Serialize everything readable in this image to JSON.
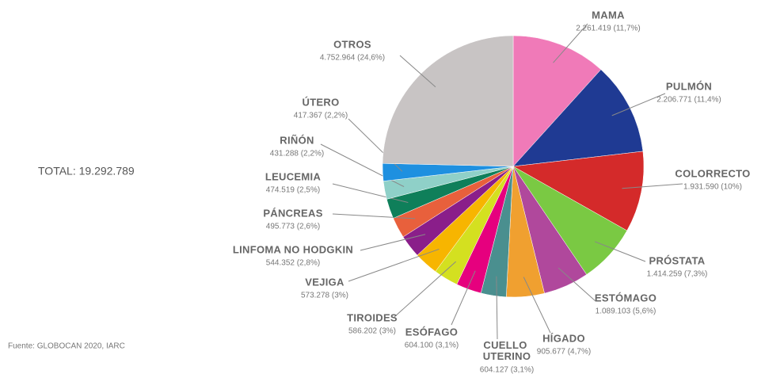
{
  "chart_data": {
    "type": "pie",
    "total_label": "TOTAL: 19.292.789",
    "source": "Fuente: GLOBOCAN 2020, IARC",
    "categories": [
      "MAMA",
      "PULMÓN",
      "COLORRECTO",
      "PRÓSTATA",
      "ESTÓMAGO",
      "HÍGADO",
      "CUELLO UTERINO",
      "ESÓFAGO",
      "TIROIDES",
      "VEJIGA",
      "LINFOMA NO HODGKIN",
      "PÁNCREAS",
      "LEUCEMIA",
      "RIÑÓN",
      "ÚTERO",
      "OTROS"
    ],
    "values": [
      2261419,
      2206771,
      1931590,
      1414259,
      1089103,
      905677,
      604127,
      604100,
      586202,
      573278,
      544352,
      495773,
      474519,
      431288,
      417367,
      4752964
    ],
    "value_labels": [
      "2.261.419 (11,7%)",
      "2.206.771 (11,4%)",
      "1.931.590 (10%)",
      "1.414.259 (7,3%)",
      "1.089.103 (5,6%)",
      "905.677 (4,7%)",
      "604.127 (3,1%)",
      "604.100 (3,1%)",
      "586.202 (3%)",
      "573.278 (3%)",
      "544.352 (2,8%)",
      "495.773 (2,6%)",
      "474.519 (2,5%)",
      "431.288 (2,2%)",
      "417.367 (2,2%)",
      "4.752.964 (24,6%)"
    ],
    "colors": [
      "#f07ab8",
      "#1f3a93",
      "#d42a2a",
      "#7ac943",
      "#b0489c",
      "#f0a030",
      "#4a8f8f",
      "#e6007e",
      "#d4e020",
      "#f7b500",
      "#8a1e8a",
      "#e8603c",
      "#0f7f5a",
      "#8fd0c8",
      "#1e90e0",
      "#c8c4c4"
    ]
  }
}
